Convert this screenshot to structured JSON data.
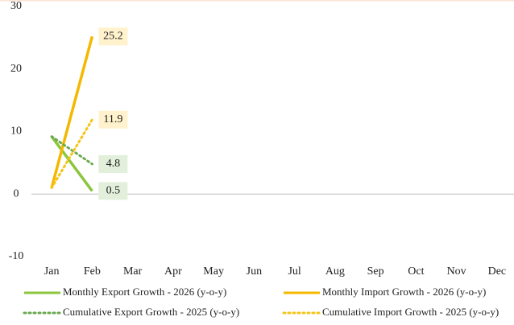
{
  "chart_data": {
    "type": "line",
    "categories": [
      "Jan",
      "Feb",
      "Mar",
      "Apr",
      "May",
      "Jun",
      "Jul",
      "Aug",
      "Sep",
      "Oct",
      "Nov",
      "Dec"
    ],
    "ylim": [
      -10,
      30
    ],
    "yticks": [
      -10,
      0,
      10,
      20,
      30
    ],
    "series": [
      {
        "name": "Monthly Export Growth - 2026 (y-o-y)",
        "color": "#8cc63e",
        "dash": "solid",
        "values": [
          9.2,
          0.5,
          null,
          null,
          null,
          null,
          null,
          null,
          null,
          null,
          null,
          null
        ],
        "value_labels": [
          null,
          "0.5",
          null,
          null,
          null,
          null,
          null,
          null,
          null,
          null,
          null,
          null
        ]
      },
      {
        "name": "Monthly Import Growth - 2026 (y-o-y)",
        "color": "#f5b800",
        "dash": "solid",
        "values": [
          1,
          25.2,
          null,
          null,
          null,
          null,
          null,
          null,
          null,
          null,
          null,
          null
        ],
        "value_labels": [
          null,
          "25.2",
          null,
          null,
          null,
          null,
          null,
          null,
          null,
          null,
          null,
          null
        ]
      },
      {
        "name": "Cumulative Export Growth - 2025 (y-o-y)",
        "color": "#6aa84f",
        "dash": "dotted",
        "values": [
          9.2,
          4.8,
          null,
          null,
          null,
          null,
          null,
          null,
          null,
          null,
          null,
          null
        ],
        "value_labels": [
          null,
          "4.8",
          null,
          null,
          null,
          null,
          null,
          null,
          null,
          null,
          null,
          null
        ]
      },
      {
        "name": "Cumulative Import Growth - 2025 (y-o-y)",
        "color": "#f5c518",
        "dash": "dotted",
        "values": [
          1,
          11.9,
          null,
          null,
          null,
          null,
          null,
          null,
          null,
          null,
          null,
          null
        ],
        "value_labels": [
          null,
          "11.9",
          null,
          null,
          null,
          null,
          null,
          null,
          null,
          null,
          null,
          null
        ]
      }
    ]
  }
}
